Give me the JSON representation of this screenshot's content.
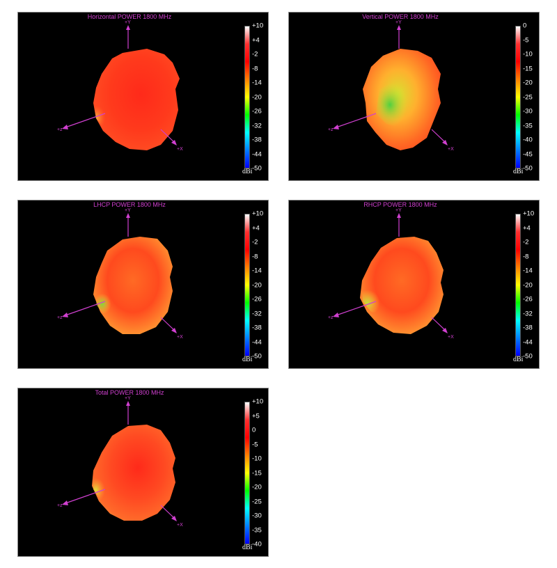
{
  "panels": [
    {
      "title": "Horizontal POWER 1800  MHz",
      "colorbar_ticks": [
        "+10",
        "+4",
        "-2",
        "-8",
        "-14",
        "-20",
        "-26",
        "-32",
        "-38",
        "-44",
        "-50"
      ],
      "unit": "dBi",
      "axes": {
        "y": "+Y",
        "z": "+z",
        "x": "+X"
      },
      "surface_colors": [
        "#ff2a1a",
        "#ff3a1c",
        "#ff4a22",
        "#ff6a2a",
        "#ffb03a"
      ]
    },
    {
      "title": "Vertical POWER 1800  MHz",
      "colorbar_ticks": [
        "0",
        "-5",
        "-10",
        "-15",
        "-20",
        "-25",
        "-30",
        "-35",
        "-40",
        "-45",
        "-50"
      ],
      "unit": "dBi",
      "axes": {
        "y": "+Y",
        "z": "+z",
        "x": "+X"
      },
      "surface_colors": [
        "#ff3a1c",
        "#ff6a24",
        "#ffb02e",
        "#d8e030",
        "#50d040"
      ]
    },
    {
      "title": "LHCP POWER 1800  MHz",
      "colorbar_ticks": [
        "+10",
        "+4",
        "-2",
        "-8",
        "-14",
        "-20",
        "-26",
        "-32",
        "-38",
        "-44",
        "-50"
      ],
      "unit": "dBi",
      "axes": {
        "y": "+Y",
        "z": "+z",
        "x": "+X"
      },
      "surface_colors": [
        "#ff4a1e",
        "#ff6a24",
        "#ff9030",
        "#ffc838",
        "#80d83a"
      ]
    },
    {
      "title": "RHCP POWER 1800  MHz",
      "colorbar_ticks": [
        "+10",
        "+4",
        "-2",
        "-8",
        "-14",
        "-20",
        "-26",
        "-32",
        "-38",
        "-44",
        "-50"
      ],
      "unit": "dBi",
      "axes": {
        "y": "+Y",
        "z": "+z",
        "x": "+X"
      },
      "surface_colors": [
        "#ff4a1e",
        "#ff6a24",
        "#ff9030",
        "#ffc838",
        "#c0e03a"
      ]
    },
    {
      "title": "Total POWER 1800  MHz",
      "colorbar_ticks": [
        "+10",
        "+5",
        "0",
        "-5",
        "-10",
        "-15",
        "-20",
        "-25",
        "-30",
        "-35",
        "-40"
      ],
      "unit": "dBi",
      "axes": {
        "y": "+Y",
        "z": "+z",
        "x": "+X"
      },
      "surface_colors": [
        "#ff2a1a",
        "#ff4a22",
        "#ff6a2a",
        "#ffa034",
        "#e0e03a"
      ]
    }
  ],
  "colors": {
    "background": "#000000",
    "axis": "#d040d0",
    "colorbar_stops": [
      "#ffffff",
      "#ff3030",
      "#ff0000",
      "#ff8000",
      "#ffff00",
      "#00ff00",
      "#00ffff",
      "#0080ff",
      "#0000ff"
    ]
  }
}
